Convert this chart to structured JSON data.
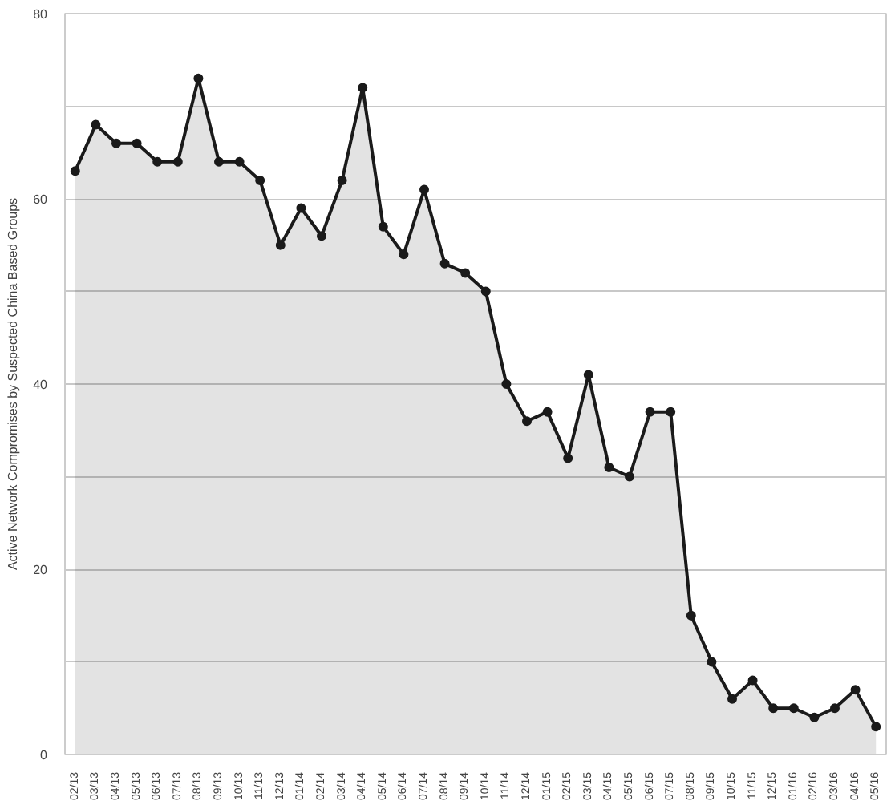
{
  "chart_data": {
    "type": "area",
    "ylabel": "Active Network Compromises by Suspected China Based Groups",
    "categories": [
      "02/13",
      "03/13",
      "04/13",
      "05/13",
      "06/13",
      "07/13",
      "08/13",
      "09/13",
      "10/13",
      "11/13",
      "12/13",
      "01/14",
      "02/14",
      "03/14",
      "04/14",
      "05/14",
      "06/14",
      "07/14",
      "08/14",
      "09/14",
      "10/14",
      "11/14",
      "12/14",
      "01/15",
      "02/15",
      "03/15",
      "04/15",
      "05/15",
      "06/15",
      "07/15",
      "08/15",
      "09/15",
      "10/15",
      "11/15",
      "12/15",
      "01/16",
      "02/16",
      "03/16",
      "04/16",
      "05/16"
    ],
    "series": [
      {
        "color": "#1a1a1a",
        "values": [
          63,
          68,
          66,
          66,
          64,
          64,
          73,
          64,
          64,
          62,
          55,
          59,
          56,
          62,
          72,
          57,
          54,
          61,
          53,
          52,
          50,
          40,
          36,
          37,
          32,
          41,
          31,
          30,
          37,
          37,
          15,
          10,
          6,
          8,
          5,
          5,
          4,
          5,
          7,
          3
        ]
      }
    ],
    "ylim": [
      0,
      80
    ],
    "yticks": [
      0,
      {
        "value": 10,
        "label": null
      },
      20,
      {
        "value": 30,
        "label": null
      },
      40,
      {
        "value": 50,
        "label": null
      },
      60,
      {
        "value": 70,
        "label": null
      },
      80
    ],
    "grid": "y",
    "marker": "circle",
    "line_style": "solid"
  }
}
